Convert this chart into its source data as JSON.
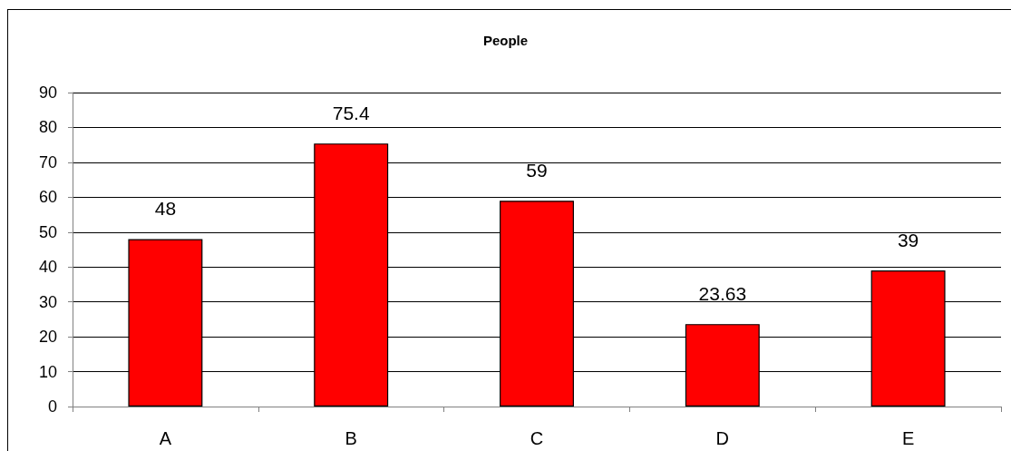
{
  "chart_data": {
    "type": "bar",
    "title": "People",
    "categories": [
      "A",
      "B",
      "C",
      "D",
      "E"
    ],
    "values": [
      48,
      75.4,
      59,
      23.63,
      39
    ],
    "color": "#ff0000",
    "ylim": [
      0,
      90
    ],
    "yticks": [
      0,
      10,
      20,
      30,
      40,
      50,
      60,
      70,
      80,
      90
    ],
    "grid": true,
    "data_labels": true
  }
}
